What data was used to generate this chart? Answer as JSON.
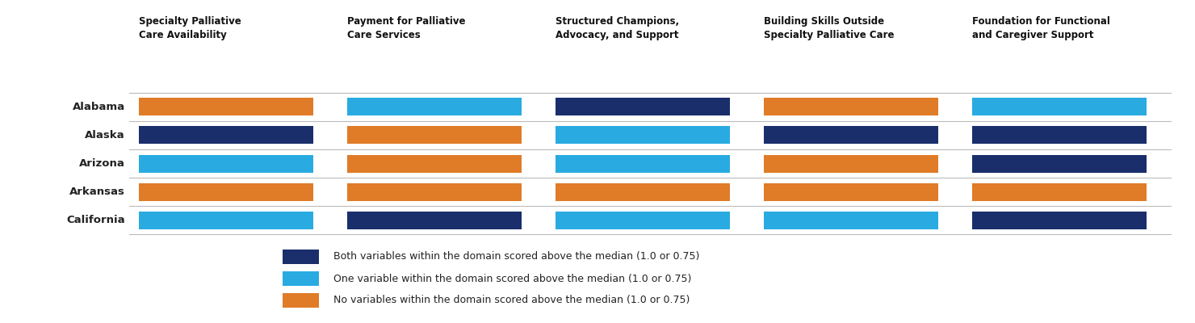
{
  "states": [
    "Alabama",
    "Alaska",
    "Arizona",
    "Arkansas",
    "California"
  ],
  "domains": [
    "Specialty Palliative\nCare Availability",
    "Payment for Palliative\nCare Services",
    "Structured Champions,\nAdvocacy, and Support",
    "Building Skills Outside\nSpecialty Palliative Care",
    "Foundation for Functional\nand Caregiver Support"
  ],
  "colors": {
    "both": "#1a2e6c",
    "one": "#29abe2",
    "none": "#e07b27"
  },
  "bar_data": [
    [
      "none",
      "one",
      "both",
      "none",
      "one"
    ],
    [
      "both",
      "none",
      "one",
      "both",
      "both"
    ],
    [
      "one",
      "none",
      "one",
      "none",
      "both"
    ],
    [
      "none",
      "none",
      "none",
      "none",
      "none"
    ],
    [
      "one",
      "both",
      "one",
      "one",
      "both"
    ]
  ],
  "legend_labels": [
    "Both variables within the domain scored above the median (1.0 or 0.75)",
    "One variable within the domain scored above the median (1.0 or 0.75)",
    "No variables within the domain scored above the median (1.0 or 0.75)"
  ],
  "legend_color_keys": [
    "both",
    "one",
    "none"
  ],
  "background_color": "#ffffff",
  "grid_color": "#bbbbbb",
  "label_color": "#222222",
  "domain_header_color": "#111111",
  "domain_fontsize": 8.5,
  "state_fontsize": 9.5,
  "legend_fontsize": 9,
  "n_domains": 5,
  "n_states": 5,
  "fig_width": 14.8,
  "fig_height": 4.0,
  "dpi": 100
}
